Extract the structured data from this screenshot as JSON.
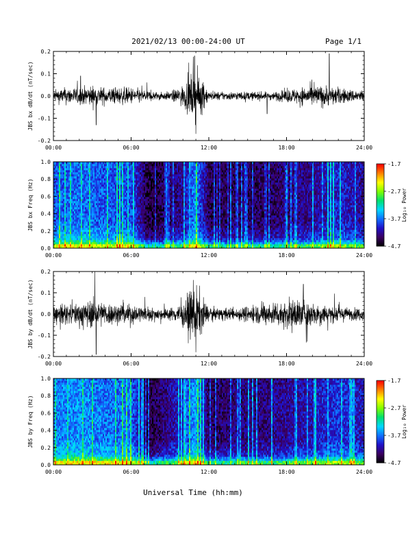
{
  "header": {
    "title": "2021/02/13  00:00-24:00 UT",
    "page": "Page 1/1"
  },
  "xlabel": "Universal Time (hh:mm)",
  "colorbar": {
    "label": "Log₁₀ Power",
    "ticks": [
      "-1.7",
      "-2.7",
      "-3.7",
      "-4.7"
    ],
    "range": [
      -4.7,
      -1.7
    ],
    "colormap": [
      "#000000",
      "#3a0060",
      "#2010c8",
      "#1070ff",
      "#00d8ff",
      "#00e070",
      "#80ff00",
      "#ffff00",
      "#ff8000",
      "#ff0000"
    ]
  },
  "chart_data": [
    {
      "type": "line",
      "ylabel": "JBS bx dB/dt (nT/sec)",
      "ylim": [
        -0.2,
        0.2
      ],
      "y_ticks": [
        "0.2",
        "0.1",
        "0.0",
        "-0.1",
        "-0.2"
      ],
      "x_ticks": [
        "00:00",
        "06:00",
        "12:00",
        "18:00",
        "24:00"
      ],
      "x_range_hours": [
        0,
        24
      ],
      "series": [
        {
          "x": [
            0,
            1,
            2,
            3,
            4,
            5,
            6,
            7,
            8,
            9,
            10,
            10.5,
            11,
            11.5,
            12,
            13,
            14,
            15,
            16,
            17,
            18,
            19,
            20,
            21,
            22,
            23,
            24
          ],
          "envelope": [
            0.03,
            0.04,
            0.04,
            0.05,
            0.04,
            0.04,
            0.04,
            0.03,
            0.02,
            0.02,
            0.05,
            0.09,
            0.12,
            0.08,
            0.02,
            0.02,
            0.02,
            0.02,
            0.02,
            0.02,
            0.03,
            0.04,
            0.05,
            0.05,
            0.04,
            0.03,
            0.03
          ],
          "spikes": [
            [
              2.1,
              0.09
            ],
            [
              3.3,
              -0.13
            ],
            [
              10.9,
              0.18
            ],
            [
              11.0,
              -0.17
            ],
            [
              16.5,
              -0.08
            ],
            [
              21.3,
              0.19
            ]
          ]
        }
      ]
    },
    {
      "type": "heatmap",
      "ylabel": "JBS bx Freq (Hz)",
      "ylim": [
        0.0,
        1.0
      ],
      "y_ticks": [
        "1.0",
        "0.8",
        "0.6",
        "0.4",
        "0.2",
        "0.0"
      ],
      "x_ticks": [
        "00:00",
        "06:00",
        "12:00",
        "18:00",
        "24:00"
      ],
      "x_range_hours": [
        0,
        24
      ],
      "time_hours": [
        0,
        2,
        4,
        6,
        7.3,
        8,
        10,
        11,
        12,
        14,
        16,
        18,
        20,
        22,
        24
      ],
      "background_log_power": [
        -3.8,
        -3.7,
        -3.8,
        -3.8,
        -4.5,
        -4.5,
        -4.2,
        -3.6,
        -4.4,
        -4.4,
        -4.4,
        -4.3,
        -4.2,
        -4.0,
        -4.2
      ]
    },
    {
      "type": "line",
      "ylabel": "JBS by dB/dt (nT/sec)",
      "ylim": [
        -0.2,
        0.2
      ],
      "y_ticks": [
        "0.2",
        "0.1",
        "0.0",
        "-0.1",
        "-0.2"
      ],
      "x_ticks": [
        "00:00",
        "06:00",
        "12:00",
        "18:00",
        "24:00"
      ],
      "x_range_hours": [
        0,
        24
      ],
      "series": [
        {
          "x": [
            0,
            1,
            2,
            3,
            4,
            5,
            6,
            7,
            8,
            9,
            10,
            10.5,
            11,
            11.5,
            12,
            13,
            14,
            15,
            16,
            17,
            18,
            19,
            20,
            21,
            22,
            23,
            24
          ],
          "envelope": [
            0.04,
            0.05,
            0.06,
            0.07,
            0.06,
            0.05,
            0.05,
            0.04,
            0.03,
            0.03,
            0.06,
            0.11,
            0.14,
            0.09,
            0.03,
            0.03,
            0.03,
            0.04,
            0.05,
            0.06,
            0.07,
            0.08,
            0.06,
            0.05,
            0.04,
            0.03,
            0.03
          ],
          "spikes": [
            [
              3.2,
              0.2
            ],
            [
              3.3,
              -0.19
            ],
            [
              10.8,
              0.16
            ],
            [
              11.0,
              -0.18
            ],
            [
              19.3,
              0.14
            ],
            [
              19.6,
              -0.13
            ]
          ]
        }
      ]
    },
    {
      "type": "heatmap",
      "ylabel": "JBS by Freq (Hz)",
      "ylim": [
        0.0,
        1.0
      ],
      "y_ticks": [
        "1.0",
        "0.8",
        "0.6",
        "0.4",
        "0.2",
        "0.0"
      ],
      "x_ticks": [
        "00:00",
        "06:00",
        "12:00",
        "18:00",
        "24:00"
      ],
      "x_range_hours": [
        0,
        24
      ],
      "time_hours": [
        0,
        2,
        4,
        6,
        7.3,
        8,
        10,
        11,
        12,
        14,
        16,
        18,
        20,
        22,
        24
      ],
      "background_log_power": [
        -3.7,
        -3.6,
        -3.7,
        -3.7,
        -4.5,
        -4.4,
        -4.0,
        -3.5,
        -4.4,
        -4.3,
        -4.3,
        -4.2,
        -4.1,
        -3.9,
        -4.1
      ]
    }
  ]
}
